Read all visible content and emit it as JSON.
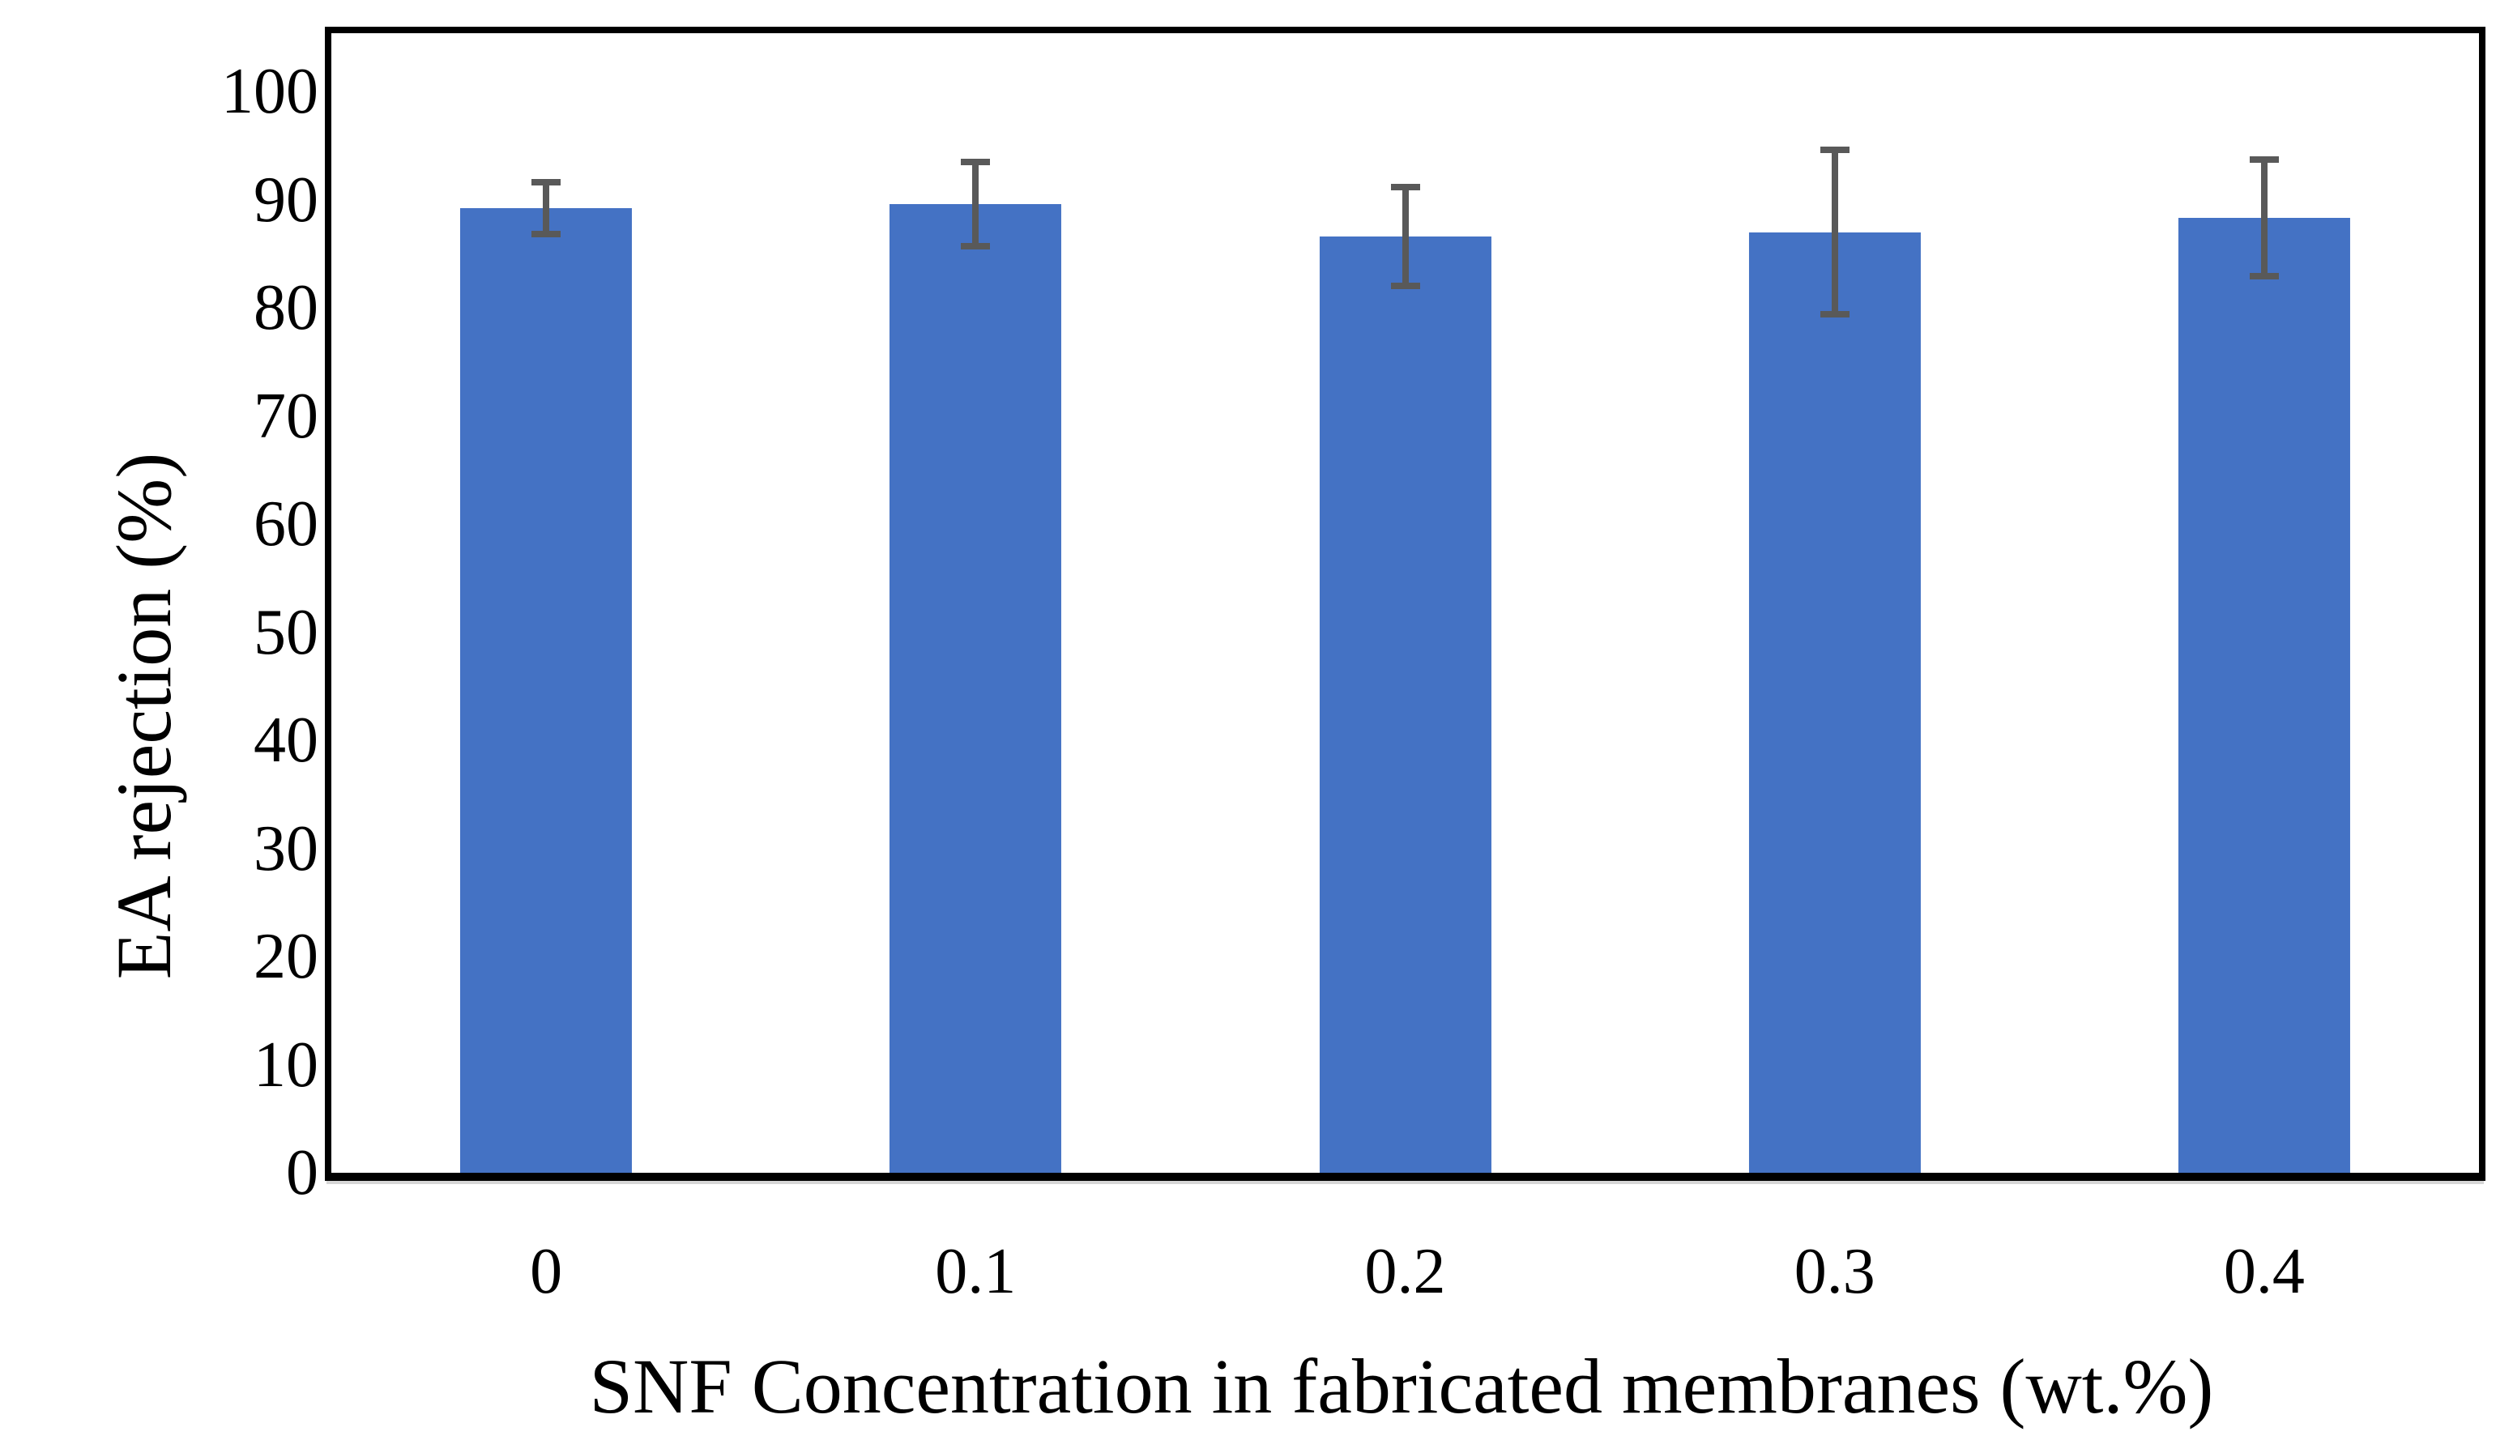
{
  "chart_data": {
    "type": "bar",
    "title": "",
    "xlabel": "SNF Concentration in fabricated membranes (wt.%)",
    "ylabel": "EA rejection (%)",
    "categories": [
      "0",
      "0.1",
      "0.2",
      "0.3",
      "0.4"
    ],
    "series": [
      {
        "name": "EA rejection",
        "values": [
          89.2,
          89.6,
          86.6,
          87.0,
          88.3
        ],
        "error_bars": [
          2.7,
          4.2,
          4.9,
          7.9,
          5.7
        ]
      }
    ],
    "yticks": [
      0,
      10,
      20,
      30,
      40,
      50,
      60,
      70,
      80,
      90,
      100
    ],
    "ylim": [
      0,
      100
    ],
    "grid": false,
    "legend": false,
    "colors": {
      "bar": "#4472C4",
      "error_bar": "#595959",
      "frame": "#000000",
      "text": "#000000",
      "background": "#FFFFFF"
    }
  }
}
